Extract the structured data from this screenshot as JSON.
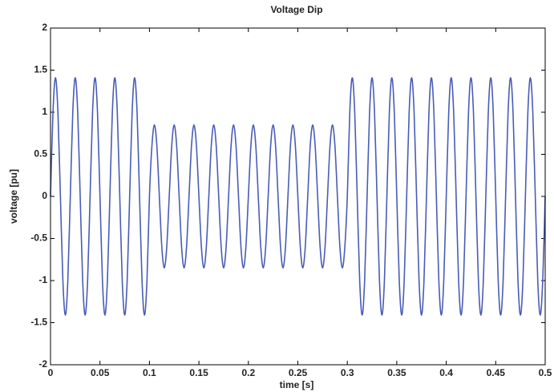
{
  "chart_data": {
    "type": "line",
    "title": "Voltage Dip",
    "x_label": "time [s]",
    "y_label": "voltage [pu]",
    "xlim": [
      0,
      0.5
    ],
    "ylim": [
      -2,
      2
    ],
    "xticks": [
      0,
      0.05,
      0.1,
      0.15,
      0.2,
      0.25,
      0.3,
      0.35,
      0.4,
      0.45,
      0.5
    ],
    "yticks": [
      -2,
      -1.5,
      -1,
      -0.5,
      0,
      0.5,
      1,
      1.5,
      2
    ],
    "x": [
      0,
      0.0025,
      0.005,
      0.0075,
      0.01,
      0.0125,
      0.015,
      0.0175,
      0.02,
      0.0225,
      0.025,
      0.0275,
      0.03,
      0.0325,
      0.035,
      0.0375,
      0.04,
      0.0425,
      0.045,
      0.0475,
      0.05,
      0.0525,
      0.055,
      0.0575,
      0.06,
      0.0625,
      0.065,
      0.0675,
      0.07,
      0.0725,
      0.075,
      0.0775,
      0.08,
      0.0825,
      0.085,
      0.0875,
      0.09,
      0.0925,
      0.095,
      0.0975,
      0.1,
      0.1025,
      0.105,
      0.1075,
      0.11,
      0.1125,
      0.115,
      0.1175,
      0.12,
      0.1225,
      0.125,
      0.1275,
      0.13,
      0.1325,
      0.135,
      0.1375,
      0.14,
      0.1425,
      0.145,
      0.1475,
      0.15,
      0.1525,
      0.155,
      0.1575,
      0.16,
      0.1625,
      0.165,
      0.1675,
      0.17,
      0.1725,
      0.175,
      0.1775,
      0.18,
      0.1825,
      0.185,
      0.1875,
      0.19,
      0.1925,
      0.195,
      0.1975,
      0.2,
      0.2025,
      0.205,
      0.2075,
      0.21,
      0.2125,
      0.215,
      0.2175,
      0.22,
      0.2225,
      0.225,
      0.2275,
      0.23,
      0.2325,
      0.235,
      0.2375,
      0.24,
      0.2425,
      0.245,
      0.2475,
      0.25,
      0.2525,
      0.255,
      0.2575,
      0.26,
      0.2625,
      0.265,
      0.2675,
      0.27,
      0.2725,
      0.275,
      0.2775,
      0.28,
      0.2825,
      0.285,
      0.2875,
      0.29,
      0.2925,
      0.295,
      0.2975,
      0.3,
      0.3025,
      0.305,
      0.3075,
      0.31,
      0.3125,
      0.315,
      0.3175,
      0.32,
      0.3225,
      0.325,
      0.3275,
      0.33,
      0.3325,
      0.335,
      0.3375,
      0.34,
      0.3425,
      0.345,
      0.3475,
      0.35,
      0.3525,
      0.355,
      0.3575,
      0.36,
      0.3625,
      0.365,
      0.3675,
      0.37,
      0.3725,
      0.375,
      0.3775,
      0.38,
      0.3825,
      0.385,
      0.3875,
      0.39,
      0.3925,
      0.395,
      0.3975,
      0.4,
      0.4025,
      0.405,
      0.4075,
      0.41,
      0.4125,
      0.415,
      0.4175,
      0.42,
      0.4225,
      0.425,
      0.4275,
      0.43,
      0.4325,
      0.435,
      0.4375,
      0.44,
      0.4425,
      0.445,
      0.4475,
      0.45,
      0.4525,
      0.455,
      0.4575,
      0.46,
      0.4625,
      0.465,
      0.4675,
      0.47,
      0.4725,
      0.475,
      0.4775,
      0.48,
      0.4825,
      0.485,
      0.4875,
      0.49,
      0.4925,
      0.495,
      0.4975,
      0.5
    ],
    "series": [
      {
        "color": "#4a5cb5",
        "values": [
          0,
          1,
          1.41,
          1,
          0,
          -1,
          -1.41,
          -1,
          0,
          1,
          1.41,
          1,
          0,
          -1,
          -1.41,
          -1,
          0,
          1,
          1.41,
          1,
          0,
          -1,
          -1.41,
          -1,
          0,
          1,
          1.41,
          1,
          0,
          -1,
          -1.41,
          -1,
          0,
          1,
          1.41,
          1,
          0,
          -1,
          -1.41,
          -1,
          0,
          0.6,
          0.85,
          0.6,
          0,
          -0.6,
          -0.85,
          -0.6,
          0,
          0.6,
          0.85,
          0.6,
          0,
          -0.6,
          -0.85,
          -0.6,
          0,
          0.6,
          0.85,
          0.6,
          0,
          -0.6,
          -0.85,
          -0.6,
          0,
          0.6,
          0.85,
          0.6,
          0,
          -0.6,
          -0.85,
          -0.6,
          0,
          0.6,
          0.85,
          0.6,
          0,
          -0.6,
          -0.85,
          -0.6,
          0,
          0.6,
          0.85,
          0.6,
          0,
          -0.6,
          -0.85,
          -0.6,
          0,
          0.6,
          0.85,
          0.6,
          0,
          -0.6,
          -0.85,
          -0.6,
          0,
          0.6,
          0.85,
          0.6,
          0,
          -0.6,
          -0.85,
          -0.6,
          0,
          0.6,
          0.85,
          0.6,
          0,
          -0.6,
          -0.85,
          -0.6,
          0,
          0.6,
          0.85,
          0.6,
          0,
          -0.6,
          -0.85,
          -0.6,
          0,
          1,
          1.41,
          1,
          0,
          -1,
          -1.41,
          -1,
          0,
          1,
          1.41,
          1,
          0,
          -1,
          -1.41,
          -1,
          0,
          1,
          1.41,
          1,
          0,
          -1,
          -1.41,
          -1,
          0,
          1,
          1.41,
          1,
          0,
          -1,
          -1.41,
          -1,
          0,
          1,
          1.41,
          1,
          0,
          -1,
          -1.41,
          -1,
          0,
          1,
          1.41,
          1,
          0,
          -1,
          -1.41,
          -1,
          0,
          1,
          1.41,
          1,
          0,
          -1,
          -1.41,
          -1,
          0,
          1,
          1.41,
          1,
          0,
          -1,
          -1.41,
          -1,
          0,
          1,
          1.41,
          1,
          0,
          -1,
          -1.41,
          -1,
          0,
          1,
          1.41,
          1,
          0,
          -1,
          -1.41,
          -1,
          0
        ]
      }
    ]
  }
}
